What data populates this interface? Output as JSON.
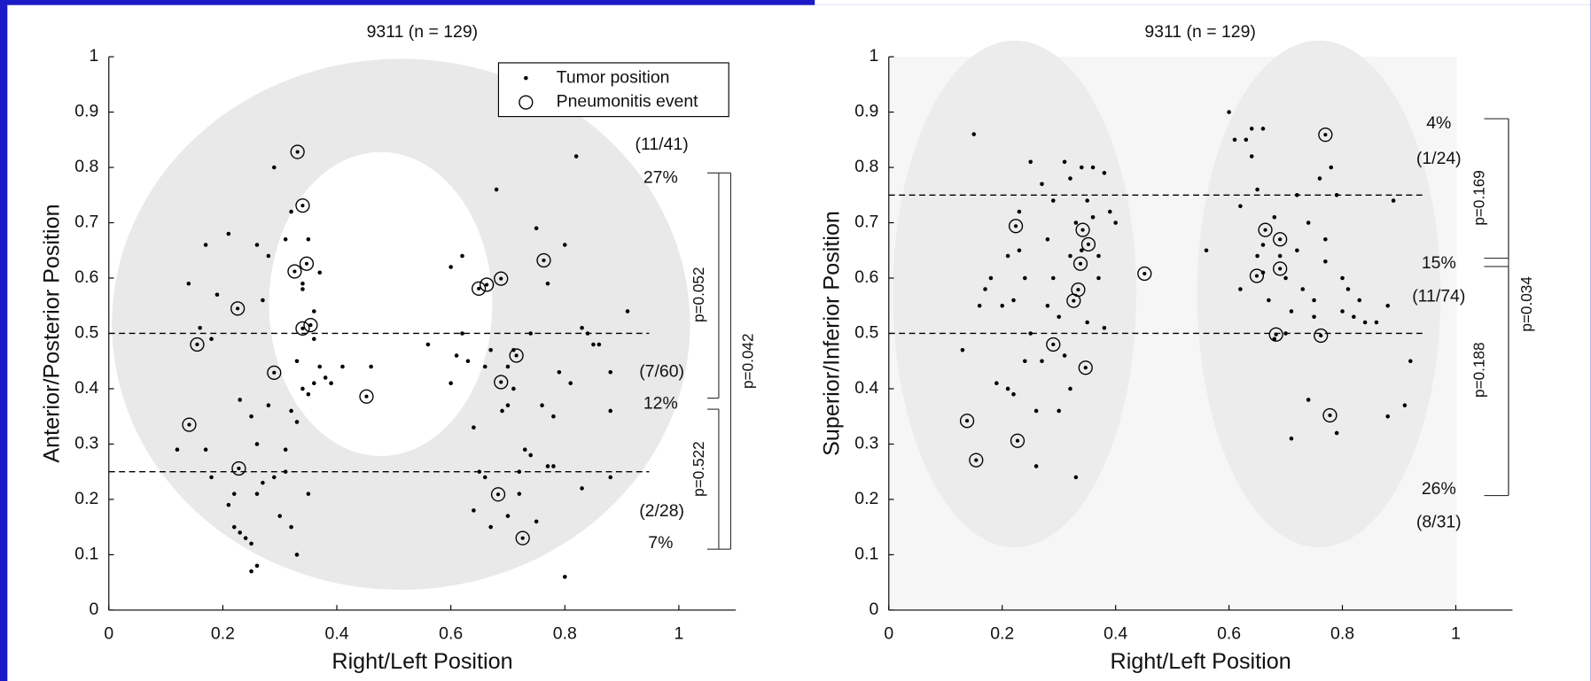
{
  "chart_data": [
    {
      "type": "scatter",
      "title": "9311 (n = 129)",
      "xlabel": "Right/Left Position",
      "ylabel": "Anterior/Posterior Position",
      "xlim": [
        0,
        1.1
      ],
      "ylim": [
        0,
        1
      ],
      "xticks": [
        0,
        0.2,
        0.4,
        0.6,
        0.8,
        1
      ],
      "yticks": [
        0,
        0.1,
        0.2,
        0.3,
        0.4,
        0.5,
        0.6,
        0.7,
        0.8,
        0.9,
        1
      ],
      "hlines": [
        0.5,
        0.25
      ],
      "legend": "upper right",
      "annotations": [
        "(11/41)",
        "27%",
        "(7/60)",
        "12%",
        "(2/28)",
        "7%",
        "p=0.052",
        "p=0.042",
        "p=0.522"
      ],
      "series": [
        {
          "name": "Tumor position",
          "marker": "dot",
          "color": "#000000",
          "x": [
            0.14,
            0.17,
            0.19,
            0.21,
            0.16,
            0.18,
            0.12,
            0.17,
            0.18,
            0.21,
            0.22,
            0.22,
            0.23,
            0.24,
            0.25,
            0.26,
            0.25,
            0.26,
            0.23,
            0.25,
            0.26,
            0.27,
            0.26,
            0.27,
            0.28,
            0.29,
            0.28,
            0.29,
            0.3,
            0.31,
            0.31,
            0.32,
            0.33,
            0.31,
            0.32,
            0.32,
            0.33,
            0.34,
            0.35,
            0.36,
            0.37,
            0.37,
            0.36,
            0.34,
            0.35,
            0.33,
            0.35,
            0.36,
            0.34,
            0.38,
            0.39,
            0.41,
            0.46,
            0.56,
            0.6,
            0.61,
            0.62,
            0.63,
            0.64,
            0.65,
            0.66,
            0.67,
            0.66,
            0.68,
            0.67,
            0.69,
            0.7,
            0.7,
            0.71,
            0.7,
            0.72,
            0.73,
            0.74,
            0.74,
            0.75,
            0.75,
            0.76,
            0.77,
            0.78,
            0.78,
            0.8,
            0.8,
            0.81,
            0.82,
            0.83,
            0.83,
            0.84,
            0.85,
            0.86,
            0.88,
            0.88,
            0.88,
            0.91,
            0.62,
            0.72,
            0.77,
            0.64,
            0.6,
            0.71,
            0.79
          ],
          "values": [
            0.59,
            0.66,
            0.57,
            0.68,
            0.51,
            0.49,
            0.29,
            0.29,
            0.24,
            0.19,
            0.21,
            0.15,
            0.14,
            0.13,
            0.07,
            0.08,
            0.12,
            0.21,
            0.38,
            0.35,
            0.3,
            0.23,
            0.66,
            0.56,
            0.64,
            0.8,
            0.37,
            0.24,
            0.17,
            0.29,
            0.25,
            0.15,
            0.1,
            0.67,
            0.72,
            0.36,
            0.34,
            0.4,
            0.39,
            0.41,
            0.44,
            0.61,
            0.54,
            0.58,
            0.21,
            0.45,
            0.67,
            0.49,
            0.59,
            0.42,
            0.41,
            0.44,
            0.44,
            0.48,
            0.62,
            0.46,
            0.5,
            0.45,
            0.33,
            0.25,
            0.44,
            0.47,
            0.24,
            0.76,
            0.15,
            0.36,
            0.37,
            0.44,
            0.47,
            0.17,
            0.21,
            0.29,
            0.28,
            0.5,
            0.69,
            0.16,
            0.37,
            0.26,
            0.26,
            0.35,
            0.66,
            0.06,
            0.41,
            0.82,
            0.22,
            0.51,
            0.5,
            0.48,
            0.48,
            0.43,
            0.36,
            0.24,
            0.54,
            0.64,
            0.25,
            0.59,
            0.18,
            0.41,
            0.4,
            0.43
          ]
        },
        {
          "name": "Pneumonitis event",
          "marker": "circle",
          "color": "#000000",
          "x": [
            0.331,
            0.34,
            0.326,
            0.347,
            0.226,
            0.34,
            0.354,
            0.155,
            0.29,
            0.141,
            0.228,
            0.452,
            0.649,
            0.663,
            0.688,
            0.763,
            0.715,
            0.688,
            0.683,
            0.726
          ],
          "values": [
            0.828,
            0.731,
            0.612,
            0.626,
            0.545,
            0.509,
            0.515,
            0.48,
            0.429,
            0.335,
            0.256,
            0.386,
            0.581,
            0.588,
            0.599,
            0.632,
            0.46,
            0.412,
            0.209,
            0.13
          ]
        }
      ]
    },
    {
      "type": "scatter",
      "title": "9311 (n = 129)",
      "xlabel": "Right/Left Position",
      "ylabel": "Superior/Inferior Position",
      "xlim": [
        0,
        1.1
      ],
      "ylim": [
        0,
        1
      ],
      "xticks": [
        0,
        0.2,
        0.4,
        0.6,
        0.8,
        1
      ],
      "yticks": [
        0,
        0.1,
        0.2,
        0.3,
        0.4,
        0.5,
        0.6,
        0.7,
        0.8,
        0.9,
        1
      ],
      "hlines": [
        0.75,
        0.5
      ],
      "annotations": [
        "4%",
        "(1/24)",
        "15%",
        "(11/74)",
        "26%",
        "(8/31)",
        "p=0.169",
        "p=0.188",
        "p=0.034"
      ],
      "series": [
        {
          "marker": "dot",
          "color": "#000000",
          "x": [
            0.15,
            0.13,
            0.16,
            0.17,
            0.18,
            0.2,
            0.21,
            0.22,
            0.23,
            0.23,
            0.24,
            0.25,
            0.25,
            0.26,
            0.26,
            0.27,
            0.27,
            0.28,
            0.28,
            0.29,
            0.29,
            0.3,
            0.3,
            0.31,
            0.31,
            0.32,
            0.32,
            0.32,
            0.33,
            0.33,
            0.34,
            0.34,
            0.35,
            0.35,
            0.36,
            0.36,
            0.37,
            0.37,
            0.38,
            0.38,
            0.39,
            0.4,
            0.19,
            0.21,
            0.24,
            0.22,
            0.56,
            0.6,
            0.61,
            0.62,
            0.63,
            0.64,
            0.64,
            0.65,
            0.66,
            0.65,
            0.66,
            0.67,
            0.68,
            0.69,
            0.7,
            0.7,
            0.71,
            0.71,
            0.72,
            0.72,
            0.73,
            0.74,
            0.75,
            0.75,
            0.76,
            0.77,
            0.77,
            0.78,
            0.79,
            0.79,
            0.8,
            0.8,
            0.81,
            0.82,
            0.83,
            0.84,
            0.86,
            0.88,
            0.88,
            0.89,
            0.91,
            0.92,
            0.66,
            0.74,
            0.62,
            0.68
          ],
          "values": [
            0.86,
            0.47,
            0.55,
            0.58,
            0.6,
            0.55,
            0.4,
            0.56,
            0.65,
            0.72,
            0.6,
            0.81,
            0.5,
            0.26,
            0.36,
            0.77,
            0.45,
            0.55,
            0.67,
            0.6,
            0.74,
            0.36,
            0.53,
            0.46,
            0.81,
            0.4,
            0.64,
            0.78,
            0.7,
            0.24,
            0.8,
            0.65,
            0.74,
            0.52,
            0.8,
            0.71,
            0.6,
            0.64,
            0.79,
            0.51,
            0.72,
            0.7,
            0.41,
            0.64,
            0.45,
            0.39,
            0.65,
            0.9,
            0.85,
            0.73,
            0.85,
            0.87,
            0.82,
            0.76,
            0.87,
            0.64,
            0.61,
            0.56,
            0.71,
            0.64,
            0.6,
            0.5,
            0.31,
            0.54,
            0.65,
            0.75,
            0.58,
            0.7,
            0.53,
            0.56,
            0.78,
            0.63,
            0.67,
            0.8,
            0.75,
            0.32,
            0.54,
            0.6,
            0.58,
            0.53,
            0.56,
            0.52,
            0.52,
            0.55,
            0.35,
            0.74,
            0.37,
            0.45,
            0.66,
            0.38,
            0.58,
            0.49
          ]
        },
        {
          "marker": "circle",
          "color": "#000000",
          "x": [
            0.224,
            0.342,
            0.352,
            0.338,
            0.334,
            0.326,
            0.29,
            0.347,
            0.138,
            0.154,
            0.227,
            0.451,
            0.77,
            0.664,
            0.69,
            0.69,
            0.649,
            0.683,
            0.762,
            0.778
          ],
          "values": [
            0.694,
            0.687,
            0.661,
            0.626,
            0.579,
            0.559,
            0.48,
            0.438,
            0.342,
            0.271,
            0.306,
            0.608,
            0.859,
            0.687,
            0.67,
            0.617,
            0.604,
            0.498,
            0.496,
            0.352
          ]
        }
      ]
    }
  ]
}
